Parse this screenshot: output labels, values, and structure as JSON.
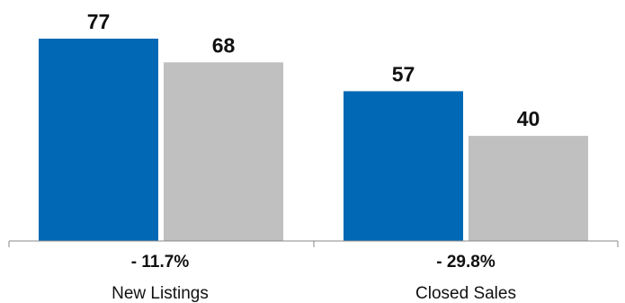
{
  "chart_data": {
    "type": "bar",
    "categories": [
      "New Listings",
      "Closed Sales"
    ],
    "series": [
      {
        "values": [
          77,
          68
        ],
        "color": "#0068b4"
      },
      {
        "values": [
          57,
          40
        ],
        "color": "#c0c0c0"
      }
    ],
    "value_labels": [
      [
        "77",
        "68"
      ],
      [
        "57",
        "40"
      ]
    ],
    "changes": [
      "- 11.7%",
      "- 29.8%"
    ],
    "axis_color": "#888888",
    "ylim": [
      0,
      77
    ],
    "grid": false,
    "legend": "none"
  }
}
